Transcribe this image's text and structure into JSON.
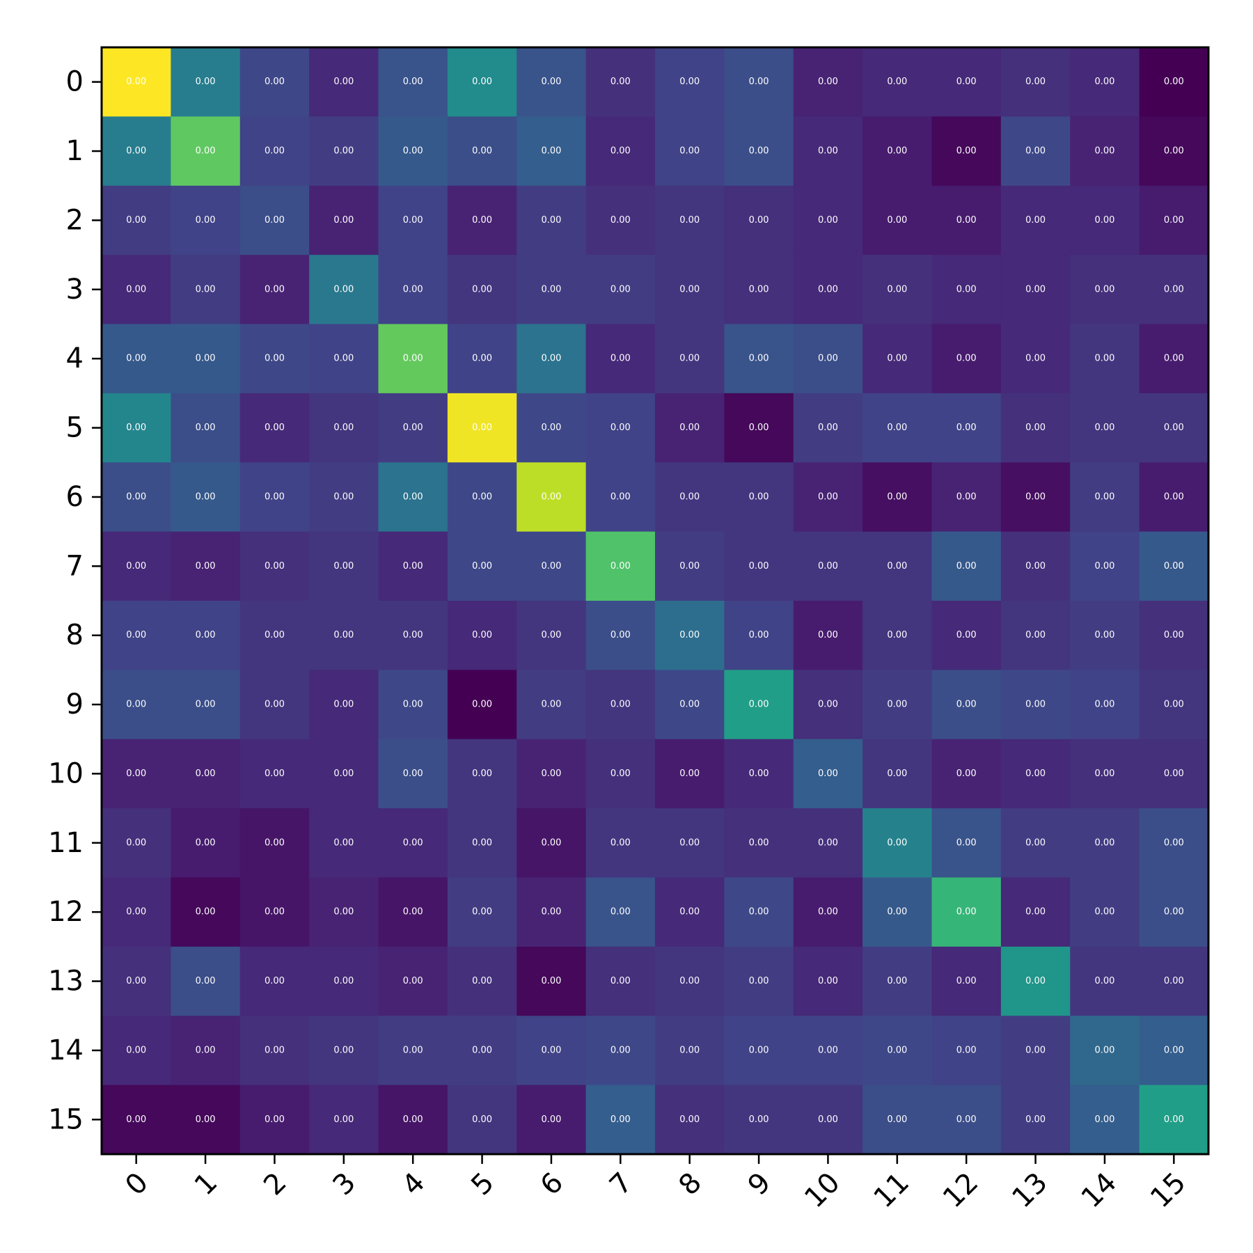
{
  "chart_data": {
    "type": "heatmap",
    "title": "",
    "xlabel": "",
    "ylabel": "",
    "x_categories": [
      "0",
      "1",
      "2",
      "3",
      "4",
      "5",
      "6",
      "7",
      "8",
      "9",
      "10",
      "11",
      "12",
      "13",
      "14",
      "15"
    ],
    "y_categories": [
      "0",
      "1",
      "2",
      "3",
      "4",
      "5",
      "6",
      "7",
      "8",
      "9",
      "10",
      "11",
      "12",
      "13",
      "14",
      "15"
    ],
    "colormap": "viridis",
    "grid": false,
    "colorbar": false,
    "cell_labels": [
      [
        "0.00",
        "0.00",
        "0.00",
        "0.00",
        "0.00",
        "0.00",
        "0.00",
        "0.00",
        "0.00",
        "0.00",
        "0.00",
        "0.00",
        "0.00",
        "0.00",
        "0.00",
        "0.00"
      ],
      [
        "0.00",
        "0.00",
        "0.00",
        "0.00",
        "0.00",
        "0.00",
        "0.00",
        "0.00",
        "0.00",
        "0.00",
        "0.00",
        "0.00",
        "0.00",
        "0.00",
        "0.00",
        "0.00"
      ],
      [
        "0.00",
        "0.00",
        "0.00",
        "0.00",
        "0.00",
        "0.00",
        "0.00",
        "0.00",
        "0.00",
        "0.00",
        "0.00",
        "0.00",
        "0.00",
        "0.00",
        "0.00",
        "0.00"
      ],
      [
        "0.00",
        "0.00",
        "0.00",
        "0.00",
        "0.00",
        "0.00",
        "0.00",
        "0.00",
        "0.00",
        "0.00",
        "0.00",
        "0.00",
        "0.00",
        "0.00",
        "0.00",
        "0.00"
      ],
      [
        "0.00",
        "0.00",
        "0.00",
        "0.00",
        "0.00",
        "0.00",
        "0.00",
        "0.00",
        "0.00",
        "0.00",
        "0.00",
        "0.00",
        "0.00",
        "0.00",
        "0.00",
        "0.00"
      ],
      [
        "0.00",
        "0.00",
        "0.00",
        "0.00",
        "0.00",
        "0.00",
        "0.00",
        "0.00",
        "0.00",
        "0.00",
        "0.00",
        "0.00",
        "0.00",
        "0.00",
        "0.00",
        "0.00"
      ],
      [
        "0.00",
        "0.00",
        "0.00",
        "0.00",
        "0.00",
        "0.00",
        "0.00",
        "0.00",
        "0.00",
        "0.00",
        "0.00",
        "0.00",
        "0.00",
        "0.00",
        "0.00",
        "0.00"
      ],
      [
        "0.00",
        "0.00",
        "0.00",
        "0.00",
        "0.00",
        "0.00",
        "0.00",
        "0.00",
        "0.00",
        "0.00",
        "0.00",
        "0.00",
        "0.00",
        "0.00",
        "0.00",
        "0.00"
      ],
      [
        "0.00",
        "0.00",
        "0.00",
        "0.00",
        "0.00",
        "0.00",
        "0.00",
        "0.00",
        "0.00",
        "0.00",
        "0.00",
        "0.00",
        "0.00",
        "0.00",
        "0.00",
        "0.00"
      ],
      [
        "0.00",
        "0.00",
        "0.00",
        "0.00",
        "0.00",
        "0.00",
        "0.00",
        "0.00",
        "0.00",
        "0.00",
        "0.00",
        "0.00",
        "0.00",
        "0.00",
        "0.00",
        "0.00"
      ],
      [
        "0.00",
        "0.00",
        "0.00",
        "0.00",
        "0.00",
        "0.00",
        "0.00",
        "0.00",
        "0.00",
        "0.00",
        "0.00",
        "0.00",
        "0.00",
        "0.00",
        "0.00",
        "0.00"
      ],
      [
        "0.00",
        "0.00",
        "0.00",
        "0.00",
        "0.00",
        "0.00",
        "0.00",
        "0.00",
        "0.00",
        "0.00",
        "0.00",
        "0.00",
        "0.00",
        "0.00",
        "0.00",
        "0.00"
      ],
      [
        "0.00",
        "0.00",
        "0.00",
        "0.00",
        "0.00",
        "0.00",
        "0.00",
        "0.00",
        "0.00",
        "0.00",
        "0.00",
        "0.00",
        "0.00",
        "0.00",
        "0.00",
        "0.00"
      ],
      [
        "0.00",
        "0.00",
        "0.00",
        "0.00",
        "0.00",
        "0.00",
        "0.00",
        "0.00",
        "0.00",
        "0.00",
        "0.00",
        "0.00",
        "0.00",
        "0.00",
        "0.00",
        "0.00"
      ],
      [
        "0.00",
        "0.00",
        "0.00",
        "0.00",
        "0.00",
        "0.00",
        "0.00",
        "0.00",
        "0.00",
        "0.00",
        "0.00",
        "0.00",
        "0.00",
        "0.00",
        "0.00",
        "0.00"
      ],
      [
        "0.00",
        "0.00",
        "0.00",
        "0.00",
        "0.00",
        "0.00",
        "0.00",
        "0.00",
        "0.00",
        "0.00",
        "0.00",
        "0.00",
        "0.00",
        "0.00",
        "0.00",
        "0.00"
      ]
    ],
    "color_intensity": [
      [
        1.0,
        0.42,
        0.22,
        0.12,
        0.26,
        0.48,
        0.26,
        0.14,
        0.2,
        0.24,
        0.1,
        0.12,
        0.12,
        0.14,
        0.12,
        0.0
      ],
      [
        0.42,
        0.75,
        0.2,
        0.18,
        0.28,
        0.24,
        0.3,
        0.12,
        0.2,
        0.24,
        0.12,
        0.08,
        0.02,
        0.22,
        0.1,
        0.02
      ],
      [
        0.18,
        0.2,
        0.24,
        0.1,
        0.2,
        0.1,
        0.18,
        0.14,
        0.16,
        0.14,
        0.12,
        0.08,
        0.08,
        0.12,
        0.12,
        0.08
      ],
      [
        0.12,
        0.18,
        0.1,
        0.4,
        0.2,
        0.16,
        0.18,
        0.18,
        0.16,
        0.14,
        0.12,
        0.14,
        0.12,
        0.12,
        0.14,
        0.14
      ],
      [
        0.28,
        0.28,
        0.22,
        0.2,
        0.76,
        0.2,
        0.38,
        0.12,
        0.16,
        0.26,
        0.24,
        0.12,
        0.08,
        0.12,
        0.16,
        0.08
      ],
      [
        0.46,
        0.24,
        0.12,
        0.16,
        0.18,
        0.98,
        0.22,
        0.2,
        0.1,
        0.02,
        0.18,
        0.2,
        0.2,
        0.14,
        0.16,
        0.16
      ],
      [
        0.24,
        0.28,
        0.2,
        0.18,
        0.38,
        0.22,
        0.9,
        0.2,
        0.16,
        0.16,
        0.1,
        0.04,
        0.1,
        0.04,
        0.18,
        0.08
      ],
      [
        0.12,
        0.1,
        0.14,
        0.16,
        0.12,
        0.22,
        0.22,
        0.72,
        0.18,
        0.16,
        0.16,
        0.16,
        0.28,
        0.14,
        0.2,
        0.28
      ],
      [
        0.2,
        0.2,
        0.16,
        0.16,
        0.16,
        0.12,
        0.16,
        0.24,
        0.36,
        0.2,
        0.08,
        0.16,
        0.12,
        0.16,
        0.18,
        0.14
      ],
      [
        0.24,
        0.24,
        0.16,
        0.12,
        0.22,
        0.0,
        0.18,
        0.16,
        0.22,
        0.56,
        0.14,
        0.18,
        0.24,
        0.22,
        0.2,
        0.16
      ],
      [
        0.1,
        0.1,
        0.12,
        0.12,
        0.24,
        0.16,
        0.1,
        0.14,
        0.08,
        0.12,
        0.3,
        0.16,
        0.1,
        0.12,
        0.14,
        0.14
      ],
      [
        0.14,
        0.08,
        0.06,
        0.12,
        0.12,
        0.16,
        0.06,
        0.16,
        0.16,
        0.14,
        0.14,
        0.44,
        0.26,
        0.18,
        0.18,
        0.24
      ],
      [
        0.12,
        0.02,
        0.06,
        0.1,
        0.06,
        0.18,
        0.1,
        0.26,
        0.12,
        0.22,
        0.08,
        0.28,
        0.66,
        0.12,
        0.18,
        0.24
      ],
      [
        0.14,
        0.24,
        0.12,
        0.12,
        0.1,
        0.14,
        0.02,
        0.14,
        0.16,
        0.18,
        0.12,
        0.18,
        0.12,
        0.52,
        0.16,
        0.16
      ],
      [
        0.12,
        0.1,
        0.14,
        0.16,
        0.18,
        0.18,
        0.2,
        0.22,
        0.18,
        0.2,
        0.2,
        0.22,
        0.2,
        0.18,
        0.34,
        0.3
      ],
      [
        0.02,
        0.02,
        0.08,
        0.12,
        0.06,
        0.16,
        0.08,
        0.3,
        0.14,
        0.16,
        0.16,
        0.24,
        0.24,
        0.18,
        0.3,
        0.56
      ]
    ]
  }
}
